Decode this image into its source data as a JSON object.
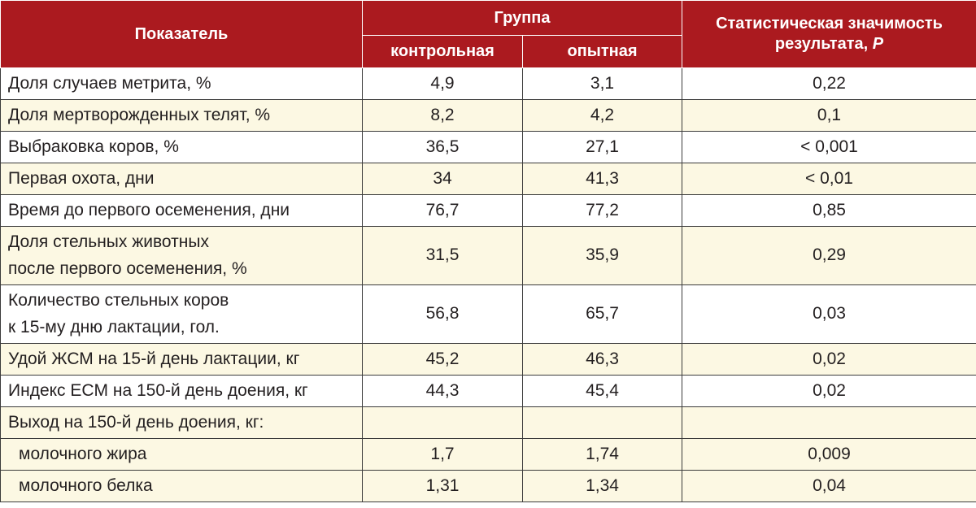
{
  "header": {
    "indicator": "Показатель",
    "group": "Группа",
    "control": "контрольная",
    "experimental": "опытная",
    "significance_line1": "Статистическая значимость",
    "significance_line2": "результата,",
    "significance_p": "P"
  },
  "rows": [
    {
      "label": [
        "Доля случаев метрита, %"
      ],
      "control": "4,9",
      "experimental": "3,1",
      "p": "0,22"
    },
    {
      "label": [
        "Доля мертворожденных телят, %"
      ],
      "control": "8,2",
      "experimental": "4,2",
      "p": "0,1"
    },
    {
      "label": [
        "Выбраковка коров, %"
      ],
      "control": "36,5",
      "experimental": "27,1",
      "p": "< 0,001"
    },
    {
      "label": [
        "Первая охота, дни"
      ],
      "control": "34",
      "experimental": "41,3",
      "p": "< 0,01"
    },
    {
      "label": [
        "Время до первого осеменения, дни"
      ],
      "control": "76,7",
      "experimental": "77,2",
      "p": "0,85"
    },
    {
      "label": [
        "Доля стельных животных",
        "после первого осеменения, %"
      ],
      "control": "31,5",
      "experimental": "35,9",
      "p": "0,29"
    },
    {
      "label": [
        "Количество стельных коров",
        "к 15-му дню лактации, гол."
      ],
      "control": "56,8",
      "experimental": "65,7",
      "p": "0,03"
    },
    {
      "label": [
        "Удой ЖСМ на 15-й день лактации, кг"
      ],
      "control": "45,2",
      "experimental": "46,3",
      "p": "0,02"
    },
    {
      "label": [
        "Индекс ECM на 150-й день доения, кг"
      ],
      "control": "44,3",
      "experimental": "45,4",
      "p": "0,02"
    },
    {
      "label": [
        "Выход на 150-й день доения, кг:"
      ],
      "control": "",
      "experimental": "",
      "p": ""
    },
    {
      "label": [
        "молочного жира"
      ],
      "control": "1,7",
      "experimental": "1,74",
      "p": "0,009"
    },
    {
      "label": [
        "молочного белка"
      ],
      "control": "1,31",
      "experimental": "1,34",
      "p": "0,04"
    }
  ]
}
